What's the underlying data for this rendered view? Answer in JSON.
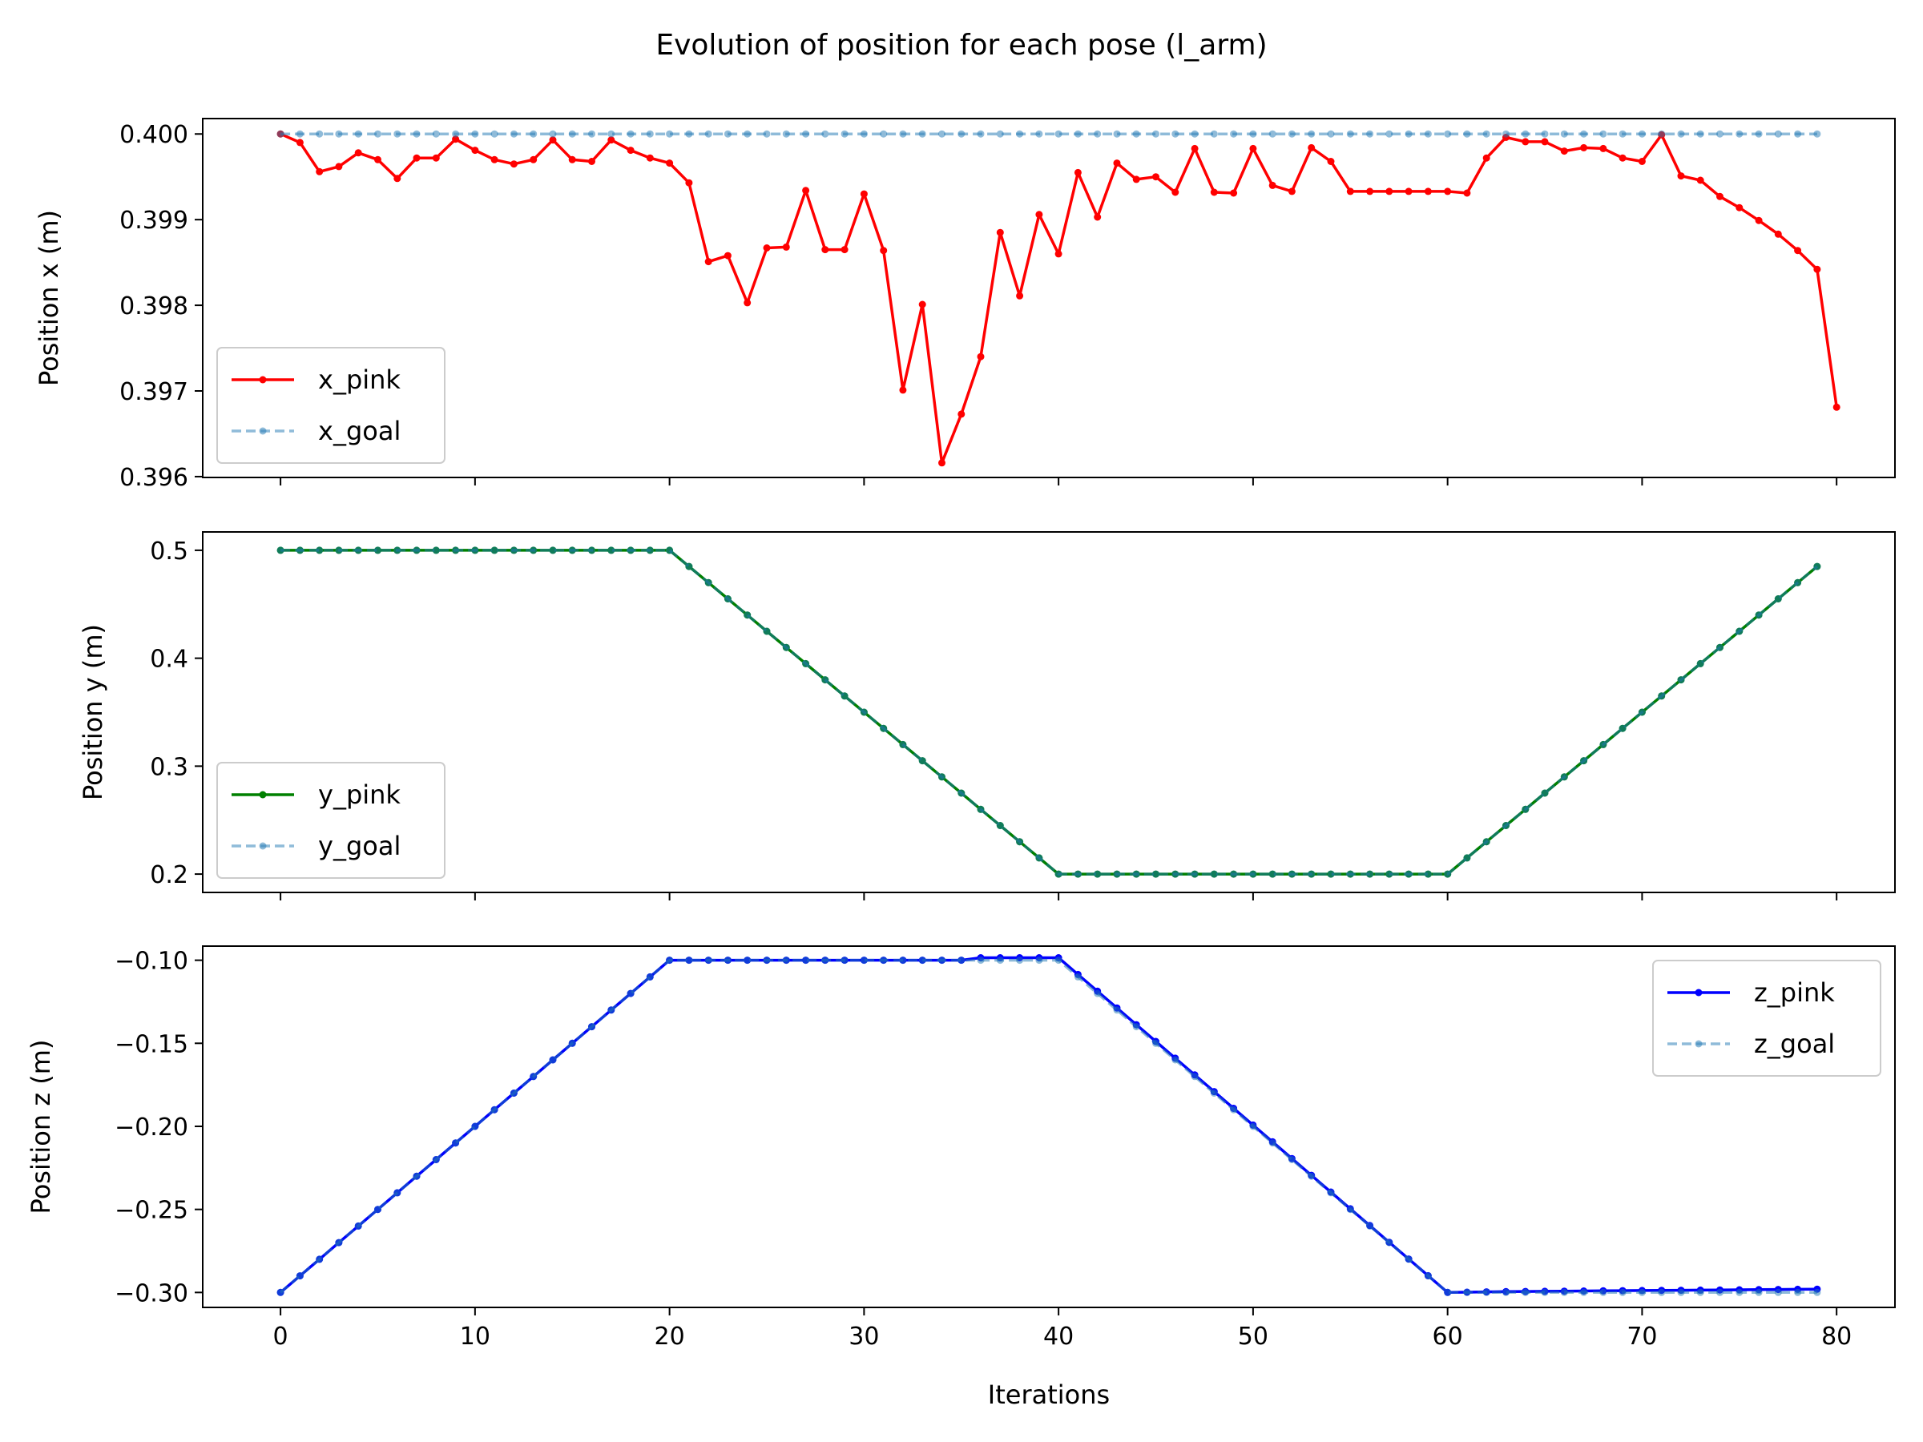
{
  "figure": {
    "title": "Evolution of position for each pose (l_arm)"
  },
  "chart_data": [
    {
      "type": "line",
      "ylabel": "Position x (m)",
      "xlabel": "",
      "xlim": [
        -4,
        83
      ],
      "ylim": [
        0.39599,
        0.40018
      ],
      "xticks": [
        0,
        10,
        20,
        30,
        40,
        50,
        60,
        70,
        80
      ],
      "show_xticklabels": false,
      "yticks": [
        0.396,
        0.397,
        0.398,
        0.399,
        0.4
      ],
      "ytick_labels": [
        "0.396",
        "0.397",
        "0.398",
        "0.399",
        "0.400"
      ],
      "grid": false,
      "legend_position": "lower-left",
      "series": [
        {
          "name": "x_pink",
          "color": "#ff0000",
          "style": "solid",
          "values": [
            0.4,
            0.3999,
            0.39956,
            0.39962,
            0.39978,
            0.3997,
            0.39948,
            0.39972,
            0.39972,
            0.39994,
            0.39981,
            0.3997,
            0.39965,
            0.3997,
            0.39993,
            0.3997,
            0.39968,
            0.39993,
            0.39981,
            0.39972,
            0.39966,
            0.39943,
            0.39851,
            0.39858,
            0.39803,
            0.39867,
            0.39868,
            0.39934,
            0.39865,
            0.39865,
            0.3993,
            0.39864,
            0.39701,
            0.39801,
            0.39616,
            0.39673,
            0.3974,
            0.39885,
            0.39811,
            0.39906,
            0.3986,
            0.39955,
            0.39903,
            0.39966,
            0.39947,
            0.3995,
            0.39932,
            0.39983,
            0.39932,
            0.39931,
            0.39983,
            0.3994,
            0.39933,
            0.39984,
            0.39968,
            0.39933,
            0.39933,
            0.39933,
            0.39933,
            0.39933,
            0.39933,
            0.39931,
            0.39972,
            0.39996,
            0.39991,
            0.39991,
            0.3998,
            0.39984,
            0.39983,
            0.39972,
            0.39968,
            0.39999,
            0.39951,
            0.39946,
            0.39927,
            0.39914,
            0.39899,
            0.39883,
            0.39864,
            0.39842,
            0.39681
          ]
        },
        {
          "name": "x_goal",
          "color": "#1f77b4",
          "style": "dashed",
          "constant": 0.4
        }
      ]
    },
    {
      "type": "line",
      "ylabel": "Position y (m)",
      "xlabel": "",
      "xlim": [
        -4,
        83
      ],
      "ylim": [
        0.183,
        0.517
      ],
      "xticks": [
        0,
        10,
        20,
        30,
        40,
        50,
        60,
        70,
        80
      ],
      "show_xticklabels": false,
      "yticks": [
        0.2,
        0.3,
        0.4,
        0.5
      ],
      "ytick_labels": [
        "0.2",
        "0.3",
        "0.4",
        "0.5"
      ],
      "grid": false,
      "legend_position": "lower-left",
      "series": [
        {
          "name": "y_pink",
          "color": "#008000",
          "style": "solid",
          "piecewise": [
            [
              0,
              0.5
            ],
            [
              20,
              0.5
            ],
            [
              40,
              0.2
            ],
            [
              60,
              0.2
            ],
            [
              79,
              0.485
            ]
          ]
        },
        {
          "name": "y_goal",
          "color": "#1f77b4",
          "style": "dashed",
          "piecewise": [
            [
              0,
              0.5
            ],
            [
              20,
              0.5
            ],
            [
              40,
              0.2
            ],
            [
              60,
              0.2
            ],
            [
              79,
              0.485
            ]
          ]
        }
      ]
    },
    {
      "type": "line",
      "ylabel": "Position z (m)",
      "xlabel": "Iterations",
      "xlim": [
        -4,
        83
      ],
      "ylim": [
        -0.309,
        -0.0915
      ],
      "xticks": [
        0,
        10,
        20,
        30,
        40,
        50,
        60,
        70,
        80
      ],
      "xtick_labels": [
        "0",
        "10",
        "20",
        "30",
        "40",
        "50",
        "60",
        "70",
        "80"
      ],
      "show_xticklabels": true,
      "yticks": [
        -0.3,
        -0.25,
        -0.2,
        -0.15,
        -0.1
      ],
      "ytick_labels": [
        "−0.30",
        "−0.25",
        "−0.20",
        "−0.15",
        "−0.10"
      ],
      "grid": false,
      "legend_position": "upper-right",
      "series": [
        {
          "name": "z_pink",
          "color": "#0000ff",
          "style": "solid",
          "piecewise": [
            [
              0,
              -0.3
            ],
            [
              20,
              -0.1
            ],
            [
              35,
              -0.1
            ],
            [
              36,
              -0.0985
            ],
            [
              39,
              -0.0985
            ],
            [
              40,
              -0.0985
            ],
            [
              60,
              -0.3
            ],
            [
              63,
              -0.2995
            ],
            [
              79,
              -0.298
            ]
          ]
        },
        {
          "name": "z_goal",
          "color": "#1f77b4",
          "style": "dashed",
          "piecewise": [
            [
              0,
              -0.3
            ],
            [
              20,
              -0.1
            ],
            [
              40,
              -0.1
            ],
            [
              60,
              -0.3
            ],
            [
              79,
              -0.3
            ]
          ]
        }
      ]
    }
  ]
}
